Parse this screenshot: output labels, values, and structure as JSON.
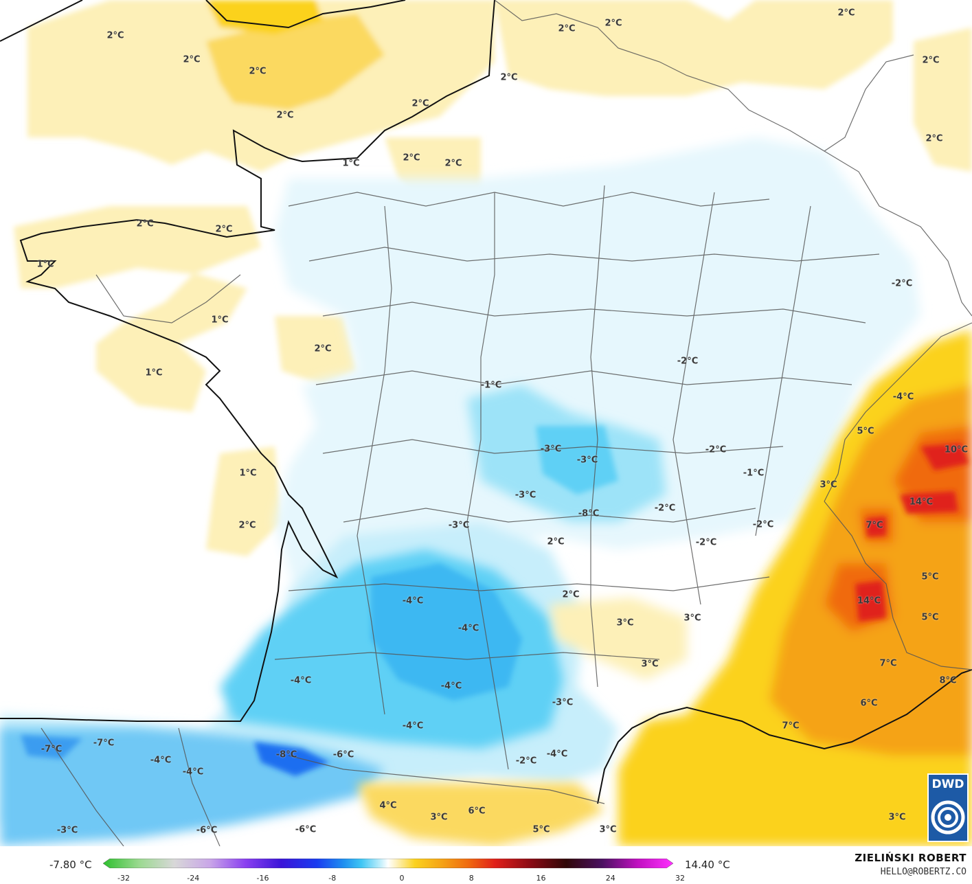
{
  "legend": {
    "min_label": "-7.80 °C",
    "max_label": "14.40 °C",
    "ticks": [
      "-32",
      "-24",
      "-16",
      "-8",
      "0",
      "8",
      "16",
      "24",
      "32"
    ],
    "range": [
      -32,
      32
    ],
    "stops": [
      {
        "v": -32,
        "c": "#2ec02e"
      },
      {
        "v": -28,
        "c": "#9ad98f"
      },
      {
        "v": -24,
        "c": "#d8d8d8"
      },
      {
        "v": -20,
        "c": "#c9a6e8"
      },
      {
        "v": -16,
        "c": "#8a3ff0"
      },
      {
        "v": -12,
        "c": "#3a14d8"
      },
      {
        "v": -8,
        "c": "#1a3cf0"
      },
      {
        "v": -5,
        "c": "#1f8ff0"
      },
      {
        "v": -3,
        "c": "#3fc6f4"
      },
      {
        "v": -1,
        "c": "#b8ecfb"
      },
      {
        "v": 0,
        "c": "#ffffff"
      },
      {
        "v": 1,
        "c": "#fdf0b8"
      },
      {
        "v": 3,
        "c": "#fbd21e"
      },
      {
        "v": 6,
        "c": "#f5a315"
      },
      {
        "v": 9,
        "c": "#f06a0f"
      },
      {
        "v": 12,
        "c": "#e0201a"
      },
      {
        "v": 16,
        "c": "#8a0a14"
      },
      {
        "v": 20,
        "c": "#300808"
      },
      {
        "v": 24,
        "c": "#4a1060"
      },
      {
        "v": 28,
        "c": "#c010c0"
      },
      {
        "v": 32,
        "c": "#ff30ff"
      }
    ]
  },
  "author": "ZIELIŃSKI ROBERT",
  "email": "HELLO@ROBERTZ.CO",
  "logo": "DWD",
  "map_labels": [
    {
      "t": "2°C"
    },
    {
      "t": "2°C"
    },
    {
      "t": "2°C"
    },
    {
      "t": "2°C"
    },
    {
      "t": "2°C"
    },
    {
      "t": "2°C"
    },
    {
      "t": "2°C"
    },
    {
      "t": "2°C"
    },
    {
      "t": "2°C"
    },
    {
      "t": "2°C"
    },
    {
      "t": "2°C"
    },
    {
      "t": "1°C"
    },
    {
      "t": "2°C"
    },
    {
      "t": "2°C"
    },
    {
      "t": "2°C"
    },
    {
      "t": "2°C"
    },
    {
      "t": "1°C"
    },
    {
      "t": "1°C"
    },
    {
      "t": "2°C"
    },
    {
      "t": "1°C"
    },
    {
      "t": "-2°C"
    },
    {
      "t": "-2°C"
    },
    {
      "t": "-1°C"
    },
    {
      "t": "-4°C"
    },
    {
      "t": "5°C"
    },
    {
      "t": "10°C"
    },
    {
      "t": "-3°C"
    },
    {
      "t": "-3°C"
    },
    {
      "t": "-2°C"
    },
    {
      "t": "1°C"
    },
    {
      "t": "-1°C"
    },
    {
      "t": "3°C"
    },
    {
      "t": "-3°C"
    },
    {
      "t": "14°C"
    },
    {
      "t": "2°C"
    },
    {
      "t": "-8°C"
    },
    {
      "t": "-2°C"
    },
    {
      "t": "-3°C"
    },
    {
      "t": "-2°C"
    },
    {
      "t": "7°C"
    },
    {
      "t": "2°C"
    },
    {
      "t": "-2°C"
    },
    {
      "t": "2°C"
    },
    {
      "t": "5°C"
    },
    {
      "t": "-4°C"
    },
    {
      "t": "14°C"
    },
    {
      "t": "3°C"
    },
    {
      "t": "3°C"
    },
    {
      "t": "-4°C"
    },
    {
      "t": "5°C"
    },
    {
      "t": "3°C"
    },
    {
      "t": "7°C"
    },
    {
      "t": "-4°C"
    },
    {
      "t": "-4°C"
    },
    {
      "t": "8°C"
    },
    {
      "t": "-3°C"
    },
    {
      "t": "6°C"
    },
    {
      "t": "-4°C"
    },
    {
      "t": "7°C"
    },
    {
      "t": "-7°C"
    },
    {
      "t": "-7°C"
    },
    {
      "t": "-8°C"
    },
    {
      "t": "-6°C"
    },
    {
      "t": "-4°C"
    },
    {
      "t": "-4°C"
    },
    {
      "t": "-2°C"
    },
    {
      "t": "-4°C"
    },
    {
      "t": "4°C"
    },
    {
      "t": "3°C"
    },
    {
      "t": "6°C"
    },
    {
      "t": "3°C"
    },
    {
      "t": "-3°C"
    },
    {
      "t": "-6°C"
    },
    {
      "t": "-6°C"
    },
    {
      "t": "5°C"
    },
    {
      "t": "3°C"
    }
  ]
}
